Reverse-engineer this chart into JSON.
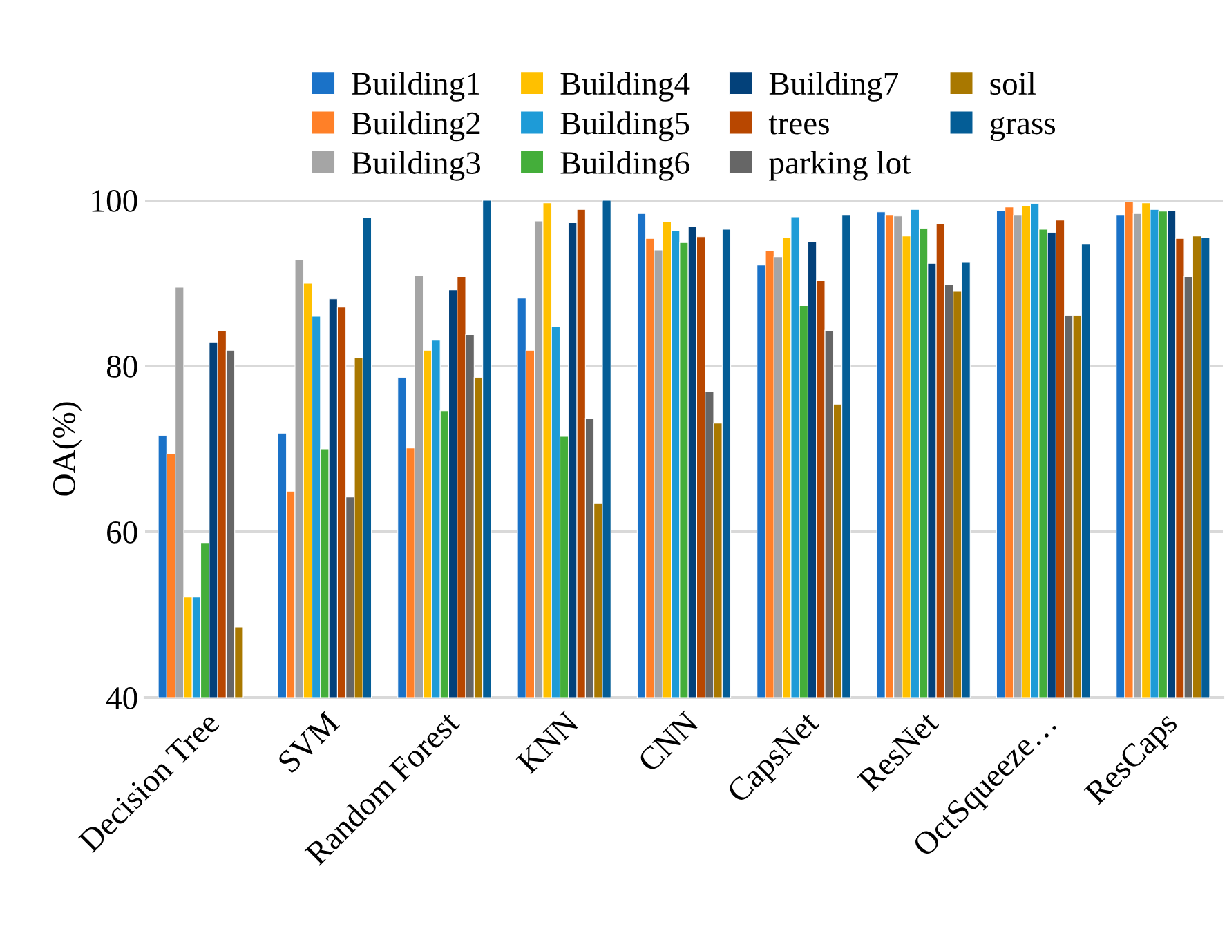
{
  "chart_data": {
    "type": "bar",
    "ylabel": "OA(%)",
    "categories": [
      "Decision Tree",
      "SVM",
      "Random Forest",
      "KNN",
      "CNN",
      "CapsNet",
      "ResNet",
      "OctSqueeze…",
      "ResCaps"
    ],
    "ylim": [
      40,
      100
    ],
    "yticks": [
      40,
      60,
      80,
      100
    ],
    "grid": "y",
    "legend": "top",
    "series": [
      {
        "name": "Building1",
        "color": "#1a72c8",
        "values": [
          71.6,
          71.9,
          78.6,
          88.2,
          98.4,
          92.2,
          98.6,
          98.8,
          98.2
        ]
      },
      {
        "name": "Building2",
        "color": "#ff8028",
        "values": [
          69.4,
          64.9,
          70.1,
          81.9,
          95.4,
          93.9,
          98.2,
          99.2,
          99.8
        ]
      },
      {
        "name": "Building3",
        "color": "#a5a5a5",
        "values": [
          89.5,
          92.8,
          90.9,
          97.5,
          94.0,
          93.2,
          98.1,
          98.2,
          98.4
        ]
      },
      {
        "name": "Building4",
        "color": "#ffc000",
        "values": [
          52.1,
          90.0,
          81.9,
          99.7,
          97.4,
          95.5,
          95.7,
          99.3,
          99.7
        ]
      },
      {
        "name": "Building5",
        "color": "#1e9bd7",
        "values": [
          52.1,
          86.0,
          83.1,
          84.8,
          96.3,
          98.0,
          98.9,
          99.6,
          98.9
        ]
      },
      {
        "name": "Building6",
        "color": "#44ae3a",
        "values": [
          58.7,
          70.0,
          74.6,
          71.5,
          94.9,
          87.3,
          96.6,
          96.5,
          98.7
        ]
      },
      {
        "name": "Building7",
        "color": "#03417a",
        "values": [
          82.9,
          88.1,
          89.2,
          97.3,
          96.8,
          95.0,
          92.4,
          96.1,
          98.8
        ]
      },
      {
        "name": "trees",
        "color": "#b84700",
        "values": [
          84.3,
          87.1,
          90.8,
          98.9,
          95.6,
          90.3,
          97.2,
          97.6,
          95.4
        ]
      },
      {
        "name": "parking lot",
        "color": "#666666",
        "values": [
          81.9,
          64.2,
          83.8,
          73.7,
          76.9,
          84.3,
          89.8,
          86.1,
          90.8
        ]
      },
      {
        "name": "soil",
        "color": "#a97800",
        "values": [
          48.5,
          81.0,
          78.6,
          63.4,
          73.1,
          75.4,
          89.0,
          86.1,
          95.7
        ]
      },
      {
        "name": "grass",
        "color": "#045d96",
        "values": [
          null,
          97.9,
          100,
          100,
          96.5,
          98.2,
          92.5,
          94.7,
          95.5
        ]
      }
    ]
  }
}
